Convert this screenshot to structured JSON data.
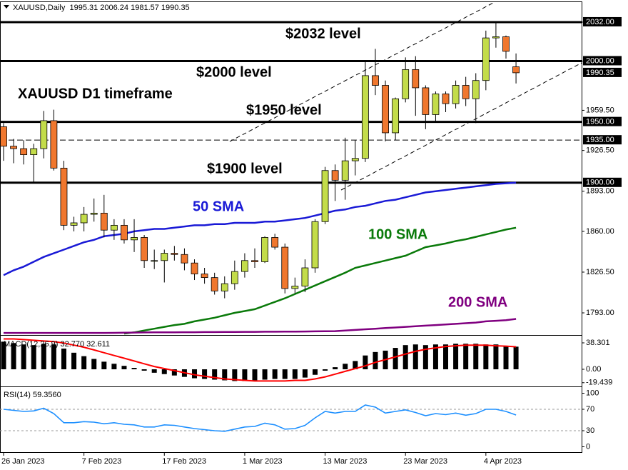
{
  "chart_data": [
    {
      "type": "candlestick",
      "title": "XAUUSD,Daily  1995.31 2006.24 1981.57 1990.35",
      "categories": [
        "26 Jan 2023",
        null,
        null,
        null,
        null,
        null,
        null,
        null,
        "7 Feb 2023",
        null,
        null,
        null,
        null,
        null,
        null,
        null,
        "17 Feb 2023",
        null,
        null,
        null,
        null,
        null,
        null,
        null,
        "1 Mar 2023",
        null,
        null,
        null,
        null,
        null,
        null,
        null,
        "13 Mar 2023",
        null,
        null,
        null,
        null,
        null,
        null,
        null,
        "23 Mar 2023",
        null,
        null,
        null,
        null,
        null,
        null,
        null,
        "4 Apr 2023",
        null,
        null,
        null
      ],
      "open": [
        1946,
        1930,
        1928,
        1923,
        1928,
        1951,
        1912,
        1865,
        1867,
        1874,
        1875,
        1861,
        1865,
        1853,
        1855,
        1836,
        1836,
        1842,
        1841,
        1834,
        1825,
        1822,
        1811,
        1817,
        1827,
        1836,
        1835,
        1855,
        1847,
        1813,
        1815,
        1830,
        1868,
        1910,
        1902,
        1918,
        1920,
        1988,
        1980,
        1941,
        1969,
        1993,
        1978,
        1956,
        1973,
        1965,
        1980,
        1969,
        1984,
        2019,
        2020,
        1995.31
      ],
      "high": [
        1949,
        1936,
        1935,
        1932,
        1959,
        1960,
        1918,
        1872,
        1880,
        1887,
        1890,
        1870,
        1870,
        1870,
        1857,
        1845,
        1845,
        1848,
        1846,
        1837,
        1830,
        1826,
        1823,
        1836,
        1842,
        1846,
        1856,
        1858,
        1850,
        1822,
        1837,
        1870,
        1913,
        1915,
        1937,
        1935,
        2000,
        2010,
        1984,
        1970,
        2003,
        2004,
        1980,
        1975,
        1975,
        1984,
        1987,
        1990,
        2025,
        2032,
        2021,
        2006.24
      ],
      "low": [
        1918,
        1916,
        1915,
        1900,
        1920,
        1910,
        1861,
        1860,
        1860,
        1868,
        1855,
        1853,
        1850,
        1843,
        1830,
        1829,
        1818,
        1836,
        1828,
        1820,
        1817,
        1808,
        1805,
        1812,
        1822,
        1830,
        1834,
        1845,
        1809,
        1809,
        1810,
        1826,
        1866,
        1885,
        1886,
        1906,
        1917,
        1972,
        1934,
        1935,
        1966,
        1955,
        1944,
        1950,
        1958,
        1961,
        1963,
        1949,
        1976,
        2011,
        2002,
        1981.57
      ],
      "close": [
        1930,
        1928,
        1923,
        1928,
        1951,
        1912,
        1865,
        1867,
        1874,
        1875,
        1861,
        1865,
        1853,
        1855,
        1836,
        1836,
        1842,
        1841,
        1834,
        1825,
        1822,
        1811,
        1817,
        1827,
        1836,
        1835,
        1855,
        1847,
        1813,
        1815,
        1830,
        1868,
        1910,
        1902,
        1918,
        1920,
        1988,
        1980,
        1941,
        1969,
        1993,
        1978,
        1956,
        1973,
        1965,
        1980,
        1969,
        1984,
        2019,
        2020,
        2008,
        1990.35
      ],
      "up_color": "#c3dc4a",
      "down_color": "#f0772e",
      "series": [
        {
          "name": "50 SMA",
          "color": "#1a1ad6",
          "values": [
            1824,
            1828,
            1831,
            1835,
            1839,
            1842,
            1845,
            1848,
            1851,
            1853,
            1856,
            1857,
            1858,
            1860,
            1861,
            1862,
            1862,
            1863,
            1864,
            1865,
            1865,
            1866,
            1866,
            1867,
            1867,
            1867,
            1868,
            1868,
            1869,
            1870,
            1871,
            1873,
            1875,
            1877,
            1878,
            1880,
            1881,
            1883,
            1885,
            1886,
            1888,
            1890,
            1892,
            1893,
            1894,
            1895,
            1896,
            1897,
            1898,
            1899,
            1899.5,
            1900
          ]
        },
        {
          "name": "100 SMA",
          "color": "#0a7a0a",
          "values": [
            null,
            null,
            null,
            null,
            null,
            null,
            null,
            null,
            null,
            null,
            null,
            null,
            1776,
            1777,
            1778.5,
            1780,
            1781.5,
            1783,
            1784,
            1786,
            1787.5,
            1789,
            1791,
            1793,
            1794.5,
            1796,
            1799,
            1802,
            1805,
            1808.5,
            1812,
            1815.5,
            1819,
            1822.5,
            1826,
            1830,
            1832,
            1834,
            1836,
            1838,
            1840,
            1843.5,
            1847,
            1848.5,
            1850,
            1852,
            1853.5,
            1855.5,
            1857.5,
            1859.5,
            1861.5,
            1863
          ]
        },
        {
          "name": "200 SMA",
          "color": "#800080",
          "values": [
            1776.5,
            1776.5,
            1776.5,
            1776.5,
            1776.5,
            1776.5,
            1776.5,
            1776.5,
            1776.5,
            1776.5,
            1776.5,
            1776.6,
            1776.7,
            1776.8,
            1776.9,
            1777,
            1777,
            1777,
            1777.1,
            1777.1,
            1777.2,
            1777.2,
            1777.3,
            1777.3,
            1777.4,
            1777.4,
            1777.5,
            1777.5,
            1777.6,
            1777.6,
            1777.7,
            1777.8,
            1777.9,
            1778,
            1778.5,
            1779,
            1779.5,
            1780,
            1780.5,
            1781,
            1781.5,
            1782,
            1782.5,
            1783,
            1783.5,
            1784,
            1784.5,
            1785,
            1786,
            1786.5,
            1787,
            1788
          ]
        }
      ],
      "ylim": [
        1775.4,
        2049
      ],
      "yticks": [
        {
          "value": 2032,
          "label": "2032.00"
        },
        {
          "value": 2000,
          "label": "2000.00"
        },
        {
          "value": 1959.5,
          "label": "1959.50"
        },
        {
          "value": 1926.5,
          "label": "1926.50"
        },
        {
          "value": 1893,
          "label": "1893.00"
        },
        {
          "value": 1860,
          "label": "1860.00"
        },
        {
          "value": 1826.5,
          "label": "1826.50"
        },
        {
          "value": 1793,
          "label": "1793.00"
        }
      ],
      "levels": [
        {
          "value": 2032,
          "label": "2032.00",
          "style": "solid"
        },
        {
          "value": 2000,
          "label": "2000.00",
          "style": "solid"
        },
        {
          "value": 1950,
          "label": "1950.00",
          "style": "solid"
        },
        {
          "value": 1935,
          "label": "1935.00",
          "style": "dashed"
        },
        {
          "value": 1900,
          "label": "1900.00",
          "style": "solid"
        }
      ],
      "last_price": {
        "value": 1990.35,
        "label": "1990.35"
      },
      "annotations": [
        "$2032 level",
        "$2000 level",
        "XAUUSD D1 timeframe",
        "$1950 level",
        "$1900 level"
      ]
    },
    {
      "type": "macd",
      "title": "MACD(12,26,9) 32.770 32.611",
      "values": [
        40,
        38,
        36,
        35,
        37,
        36,
        30,
        24,
        19,
        15,
        11,
        8,
        5,
        2,
        -2,
        -5,
        -7,
        -9,
        -11,
        -13,
        -14,
        -15,
        -16,
        -17,
        -17,
        -16,
        -15,
        -14,
        -14,
        -14,
        -12,
        -8,
        -2,
        3,
        8,
        12,
        20,
        25,
        27,
        31,
        35,
        36,
        35,
        36,
        36,
        37,
        37,
        37,
        36,
        36,
        34,
        32.77
      ],
      "color": "#000000",
      "signal": [
        44,
        44,
        43,
        42,
        41,
        40,
        38,
        35,
        32,
        28,
        24,
        20,
        16,
        12,
        8,
        4,
        1,
        -2,
        -5,
        -8,
        -10,
        -12,
        -14,
        -15,
        -16,
        -17,
        -17,
        -17,
        -17,
        -16,
        -16,
        -14,
        -11,
        -7,
        -3,
        1,
        5,
        10,
        14,
        18,
        22,
        26,
        29,
        31,
        33,
        34,
        35,
        35,
        35,
        34,
        33.5,
        32.611
      ],
      "signal_color": "#ff0000",
      "ylim": [
        -23.8,
        47.6
      ],
      "yticks": [
        38.301,
        {
          "value": 0,
          "label": "0.00"
        },
        -19.439
      ]
    },
    {
      "type": "line",
      "title": "RSI(14) 59.3560",
      "values": [
        70,
        68,
        66,
        67,
        72,
        62,
        45,
        45,
        47,
        46,
        43,
        45,
        42,
        41,
        37,
        37,
        41,
        40,
        37,
        34,
        32,
        30,
        29,
        33,
        37,
        38,
        44,
        41,
        33,
        34,
        40,
        54,
        66,
        63,
        66,
        66,
        78,
        74,
        63,
        66,
        69,
        64,
        58,
        62,
        60,
        63,
        59,
        62,
        70,
        70,
        66,
        59.356
      ],
      "color": "#1e90ff",
      "ylim": [
        -10,
        110
      ],
      "yticks": [
        100,
        70,
        30,
        0
      ],
      "levels": [
        70,
        30
      ]
    }
  ]
}
